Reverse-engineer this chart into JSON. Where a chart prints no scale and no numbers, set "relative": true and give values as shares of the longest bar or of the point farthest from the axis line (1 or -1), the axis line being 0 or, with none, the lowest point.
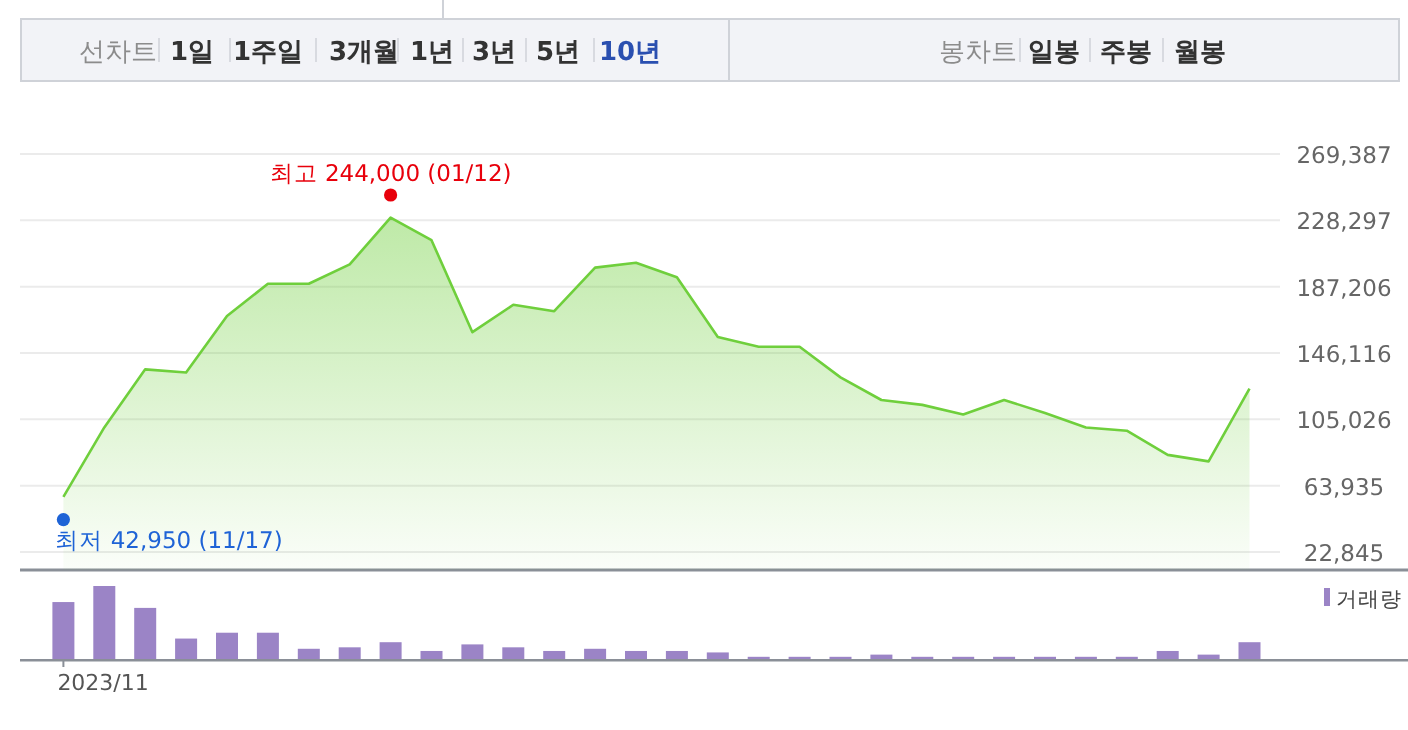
{
  "chart_data": [
    {
      "type": "area",
      "annotations": [
        "선차트",
        "1일",
        "1주일",
        "3개월",
        "1년",
        "3년",
        "5년",
        "10년",
        "봉차트",
        "일봉",
        "주봉",
        "월봉",
        "최고 244,000 (01/12)",
        "최저 42,950 (11/17)"
      ],
      "categories": [
        null,
        null,
        null,
        null,
        null,
        null,
        null,
        null,
        null,
        null,
        null,
        null,
        null,
        null,
        null,
        null,
        null,
        null,
        null,
        null,
        null,
        null,
        null,
        null,
        null,
        null,
        null,
        null,
        null,
        null
      ],
      "series": [
        {
          "color": "#6fcf3c",
          "values": [
            57000,
            100000,
            136000,
            134000,
            169000,
            189000,
            189000,
            201000,
            230000,
            216000,
            159000,
            176000,
            172000,
            199000,
            202000,
            193000,
            156000,
            150000,
            150000,
            131000,
            117000,
            114000,
            108000,
            117000,
            109000,
            100000,
            98000,
            83000,
            79000,
            124000
          ]
        },
        {
          "type": "scatter",
          "color": "#e8000b",
          "values": [
            null,
            null,
            null,
            null,
            null,
            null,
            null,
            null,
            244000,
            null,
            null,
            null,
            null,
            null,
            null,
            null,
            null,
            null,
            null,
            null,
            null,
            null,
            null,
            null,
            null,
            null,
            null,
            null,
            null,
            null
          ]
        },
        {
          "type": "scatter",
          "color": "#1e63d6",
          "values": [
            42950,
            null,
            null,
            null,
            null,
            null,
            null,
            null,
            null,
            null,
            null,
            null,
            null,
            null,
            null,
            null,
            null,
            null,
            null,
            null,
            null,
            null,
            null,
            null,
            null,
            null,
            null,
            null,
            null,
            null
          ]
        }
      ],
      "ylim": [
        11700,
        269387
      ],
      "yticks": [
        {
          "value": 22845,
          "label": "22,845"
        },
        {
          "value": 63935,
          "label": "63,935"
        },
        {
          "value": 105026,
          "label": "105,026"
        },
        {
          "value": 146116,
          "label": "146,116"
        },
        {
          "value": 187206,
          "label": "187,206"
        },
        {
          "value": 228297,
          "label": "228,297"
        },
        {
          "value": 269387,
          "label": "269,387"
        }
      ],
      "grid": "y",
      "tick_labels": "y"
    },
    {
      "type": "bar",
      "relative": true,
      "legend": "top right",
      "tick_labels": "x",
      "annotations": [
        "2023/11"
      ],
      "categories": [
        null,
        null,
        null,
        null,
        null,
        null,
        null,
        null,
        null,
        null,
        null,
        null,
        null,
        null,
        null,
        null,
        null,
        null,
        null,
        null,
        null,
        null,
        null,
        null,
        null,
        null,
        null,
        null,
        null,
        null
      ],
      "series": [
        {
          "name": "거래량",
          "color": "#9b84c6",
          "values": [
            0.78,
            1,
            0.7,
            0.28,
            0.36,
            0.36,
            0.14,
            0.16,
            0.23,
            0.11,
            0.2,
            0.16,
            0.11,
            0.14,
            0.11,
            0.11,
            0.09,
            0.03,
            0.03,
            0.03,
            0.06,
            0.03,
            0.03,
            0.03,
            0.03,
            0.03,
            0.03,
            0.11,
            0.06,
            0.23
          ]
        }
      ]
    }
  ]
}
